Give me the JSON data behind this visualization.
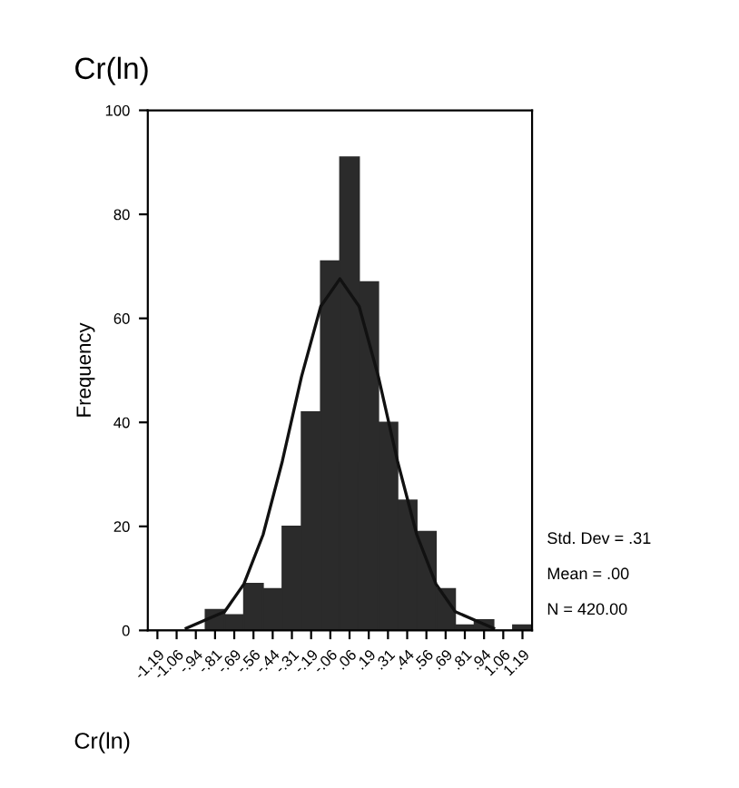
{
  "chart_data": {
    "type": "histogram",
    "title": "Cr(ln)",
    "xlabel": "Cr(ln)",
    "ylabel": "Frequency",
    "bins": [
      -1.25,
      -1.125,
      -1.0,
      -0.875,
      -0.75,
      -0.625,
      -0.5,
      -0.375,
      -0.25,
      -0.125,
      0,
      0.125,
      0.25,
      0.375,
      0.5,
      0.625,
      0.75,
      0.875,
      1.0,
      1.125,
      1.25
    ],
    "values": [
      0,
      0,
      0,
      4,
      3,
      9,
      8,
      20,
      42,
      71,
      91,
      67,
      40,
      25,
      19,
      8,
      1,
      2,
      0,
      1
    ],
    "color": "#2b2b2b",
    "series": [
      {
        "type": "line",
        "color": "#111111",
        "x": [
          -1.0,
          -0.75,
          -0.625,
          -0.5,
          -0.375,
          -0.25,
          -0.125,
          0,
          0.125,
          0.25,
          0.375,
          0.5,
          0.625,
          0.75,
          1.0
        ],
        "values": [
          0.4,
          3.6,
          8.9,
          18.4,
          32.5,
          48.8,
          62.3,
          67.6,
          62.3,
          48.8,
          32.5,
          18.4,
          8.9,
          3.6,
          0.4
        ]
      }
    ],
    "xlim": [
      -1.25,
      1.25
    ],
    "xticks": [
      {
        "value": -1.1875,
        "label": "-1.19"
      },
      {
        "value": -1.0625,
        "label": "-1.06"
      },
      {
        "value": -0.9375,
        "label": "-.94"
      },
      {
        "value": -0.8125,
        "label": "-.81"
      },
      {
        "value": -0.6875,
        "label": "-.69"
      },
      {
        "value": -0.5625,
        "label": "-.56"
      },
      {
        "value": -0.4375,
        "label": "-.44"
      },
      {
        "value": -0.3125,
        "label": "-.31"
      },
      {
        "value": -0.1875,
        "label": "-.19"
      },
      {
        "value": -0.0625,
        "label": "-.06"
      },
      {
        "value": 0.0625,
        "label": ".06"
      },
      {
        "value": 0.1875,
        "label": ".19"
      },
      {
        "value": 0.3125,
        "label": ".31"
      },
      {
        "value": 0.4375,
        "label": ".44"
      },
      {
        "value": 0.5625,
        "label": ".56"
      },
      {
        "value": 0.6875,
        "label": ".69"
      },
      {
        "value": 0.8125,
        "label": ".81"
      },
      {
        "value": 0.9375,
        "label": ".94"
      },
      {
        "value": 1.0625,
        "label": "1.06"
      },
      {
        "value": 1.1875,
        "label": "1.19"
      }
    ],
    "ylim": [
      0,
      100
    ],
    "yticks": [
      0,
      20,
      40,
      60,
      80,
      100
    ],
    "annotations": [
      "Std. Dev = .31",
      "Mean = .00",
      "N = 420.00"
    ],
    "grid": false,
    "legend": false
  }
}
